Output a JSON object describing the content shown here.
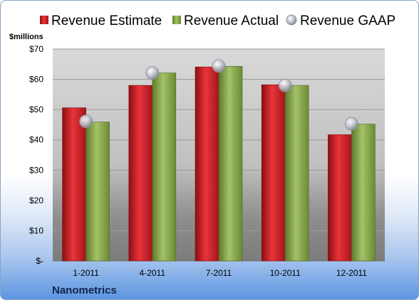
{
  "chart_data": {
    "type": "bar",
    "categories": [
      "1-2011",
      "4-2011",
      "7-2011",
      "10-2011",
      "12-2011"
    ],
    "series": [
      {
        "name": "Revenue Estimate",
        "type": "bar",
        "color": "#d42027",
        "values": [
          50.6,
          58.0,
          64.1,
          58.2,
          41.7
        ]
      },
      {
        "name": "Revenue Actual",
        "type": "bar",
        "color": "#8aab4e",
        "values": [
          45.9,
          62.1,
          64.3,
          58.0,
          45.2
        ]
      },
      {
        "name": "Revenue GAAP",
        "type": "marker",
        "color": "#b8bcc8",
        "values": [
          46.1,
          62.1,
          64.4,
          58.0,
          45.3
        ]
      }
    ],
    "y_unit_label": "$millions",
    "yticks": [
      "$-",
      "$10",
      "$20",
      "$30",
      "$40",
      "$50",
      "$60",
      "$70"
    ],
    "ylim": [
      0,
      70
    ],
    "grid": true,
    "legend_position": "top",
    "footer": "Nanometrics"
  }
}
